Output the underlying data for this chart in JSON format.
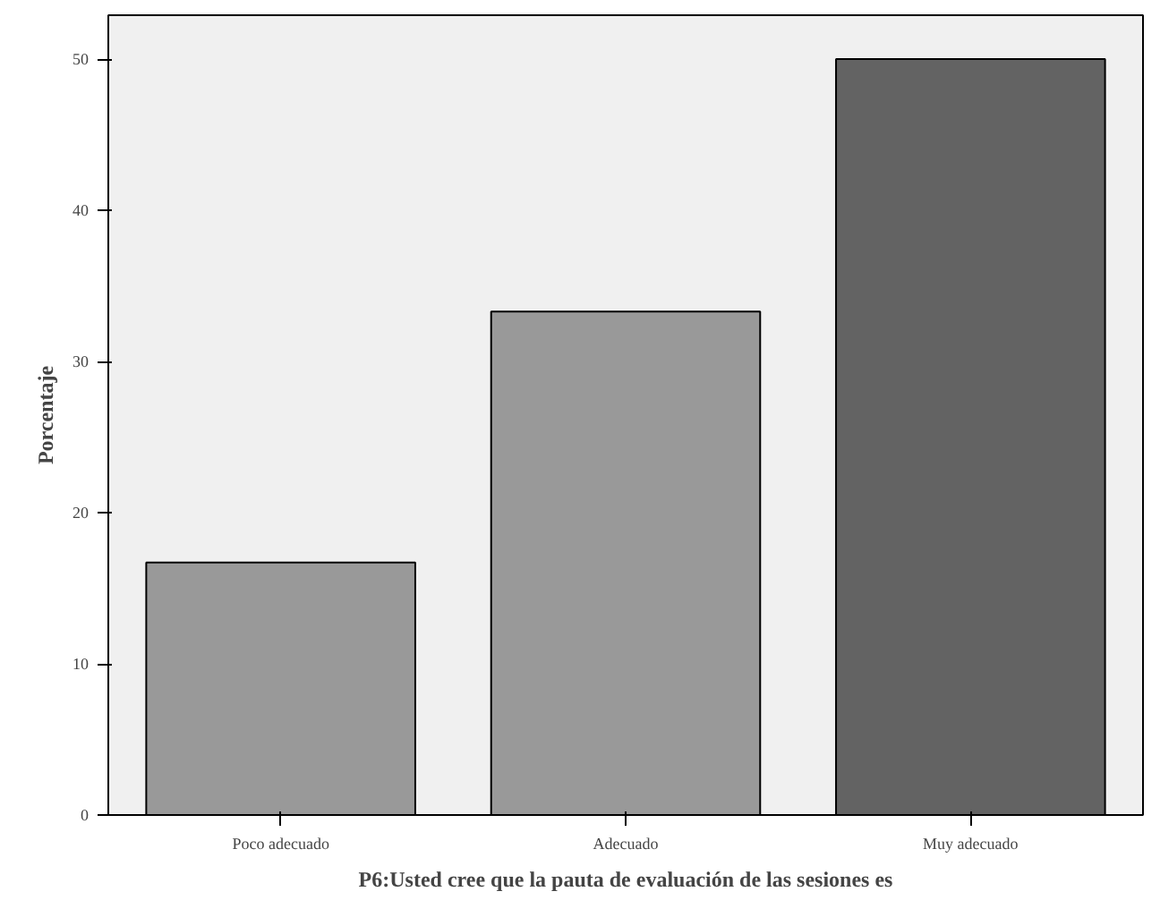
{
  "chart_data": {
    "type": "bar",
    "xlabel": "P6:Usted cree que la pauta de evaluación de las sesiones es",
    "ylabel": "Porcentaje",
    "categories": [
      "Poco adecuado",
      "Adecuado",
      "Muy adecuado"
    ],
    "values": [
      16.7,
      33.3,
      50.0
    ],
    "colors": [
      "#999999",
      "#999999",
      "#636363"
    ],
    "ylim": [
      0,
      52.9
    ],
    "yticks": [
      0,
      10,
      20,
      30,
      40,
      50
    ],
    "grid": false
  }
}
